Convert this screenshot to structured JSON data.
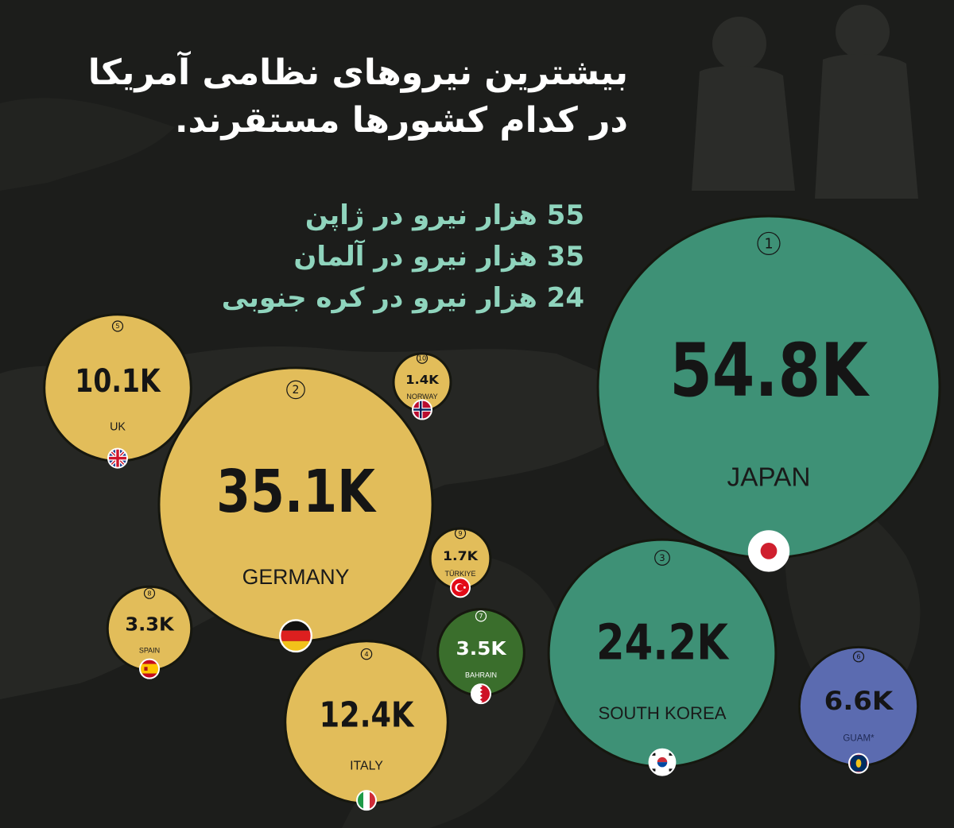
{
  "title_lines": [
    "بیشترین نیروهای نظامی آمریکا",
    "در کدام کشورها مستقرند."
  ],
  "highlights": [
    "55 هزار نیرو در ژاپن",
    "35 هزار نیرو در آلمان",
    "24 هزار نیرو در کره جنوبی"
  ],
  "colors": {
    "background": "#1c1d1b",
    "europe_bubble": "#e2bd5a",
    "asia_bubble": "#3e9176",
    "middle_east_bubble": "#3a6e2c",
    "guam_bubble": "#5b6bb0",
    "highlight_text": "#8fd4bd"
  },
  "chart_data": {
    "type": "bubble",
    "title": "بیشترین نیروهای نظامی آمریکا در کدام کشورها مستقرند.",
    "unit": "K",
    "series": [
      {
        "rank": 1,
        "country": "JAPAN",
        "value": 54.8,
        "label": "54.8K",
        "color": "#3e9176",
        "flag": "japan-flag"
      },
      {
        "rank": 2,
        "country": "GERMANY",
        "value": 35.1,
        "label": "35.1K",
        "color": "#e2bd5a",
        "flag": "germany-flag"
      },
      {
        "rank": 3,
        "country": "SOUTH KOREA",
        "value": 24.2,
        "label": "24.2K",
        "color": "#3e9176",
        "flag": "south-korea-flag"
      },
      {
        "rank": 4,
        "country": "ITALY",
        "value": 12.4,
        "label": "12.4K",
        "color": "#e2bd5a",
        "flag": "italy-flag"
      },
      {
        "rank": 5,
        "country": "UK",
        "value": 10.1,
        "label": "10.1K",
        "color": "#e2bd5a",
        "flag": "uk-flag"
      },
      {
        "rank": 6,
        "country": "GUAM*",
        "value": 6.6,
        "label": "6.6K",
        "color": "#5b6bb0",
        "flag": "guam-flag"
      },
      {
        "rank": 7,
        "country": "BAHRAIN",
        "value": 3.5,
        "label": "3.5K",
        "color": "#3a6e2c",
        "flag": "bahrain-flag"
      },
      {
        "rank": 8,
        "country": "SPAIN",
        "value": 3.3,
        "label": "3.3K",
        "color": "#e2bd5a",
        "flag": "spain-flag"
      },
      {
        "rank": 9,
        "country": "TÜRKIYE",
        "value": 1.7,
        "label": "1.7K",
        "color": "#e2bd5a",
        "flag": "turkiye-flag"
      },
      {
        "rank": 10,
        "country": "NORWAY",
        "value": 1.4,
        "label": "1.4K",
        "color": "#e2bd5a",
        "flag": "norway-flag"
      }
    ]
  }
}
